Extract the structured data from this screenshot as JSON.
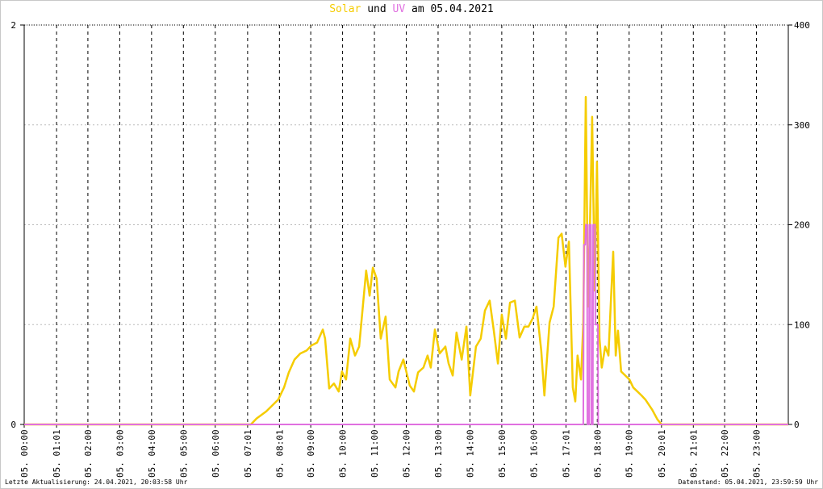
{
  "chart_data": {
    "type": "line",
    "title": [
      "und",
      "am 05.04.2021"
    ],
    "xlim": [
      0,
      24
    ],
    "xticks": [
      {
        "value": 0,
        "label": "05. 00:00"
      },
      {
        "value": 1.017,
        "label": "05. 01:01"
      },
      {
        "value": 2,
        "label": "05. 02:00"
      },
      {
        "value": 3,
        "label": "05. 03:00"
      },
      {
        "value": 4,
        "label": "05. 04:00"
      },
      {
        "value": 5,
        "label": "05. 05:00"
      },
      {
        "value": 6,
        "label": "05. 06:00"
      },
      {
        "value": 7.017,
        "label": "05. 07:01"
      },
      {
        "value": 8.017,
        "label": "05. 08:01"
      },
      {
        "value": 9,
        "label": "05. 09:00"
      },
      {
        "value": 10,
        "label": "05. 10:00"
      },
      {
        "value": 11,
        "label": "05. 11:00"
      },
      {
        "value": 12,
        "label": "05. 12:00"
      },
      {
        "value": 13,
        "label": "05. 13:00"
      },
      {
        "value": 14,
        "label": "05. 14:00"
      },
      {
        "value": 15,
        "label": "05. 15:00"
      },
      {
        "value": 16,
        "label": "05. 16:00"
      },
      {
        "value": 17.017,
        "label": "05. 17:01"
      },
      {
        "value": 18,
        "label": "05. 18:00"
      },
      {
        "value": 19,
        "label": "05. 19:00"
      },
      {
        "value": 20.017,
        "label": "05. 20:01"
      },
      {
        "value": 21.017,
        "label": "05. 21:01"
      },
      {
        "value": 22,
        "label": "05. 22:00"
      },
      {
        "value": 23,
        "label": "05. 23:00"
      }
    ],
    "ylim": [
      0,
      2
    ],
    "yticks": [
      0,
      2
    ],
    "y2lim": [
      0,
      400
    ],
    "y2ticks": [
      0,
      100,
      200,
      300,
      400
    ],
    "grid": true,
    "series": [
      {
        "name": "Solar",
        "color": "#f5cc00",
        "axis": "y2",
        "x": [
          0,
          7.12,
          7.3,
          7.6,
          7.98,
          8.16,
          8.31,
          8.49,
          8.67,
          8.87,
          9.02,
          9.2,
          9.38,
          9.45,
          9.58,
          9.73,
          9.88,
          9.98,
          10.11,
          10.24,
          10.39,
          10.52,
          10.74,
          10.85,
          10.95,
          11.07,
          11.2,
          11.35,
          11.48,
          11.66,
          11.76,
          11.91,
          12.11,
          12.24,
          12.37,
          12.54,
          12.67,
          12.77,
          12.9,
          13.05,
          13.23,
          13.33,
          13.46,
          13.58,
          13.74,
          13.89,
          14.01,
          14.19,
          14.34,
          14.47,
          14.62,
          14.75,
          14.88,
          15.0,
          15.13,
          15.26,
          15.41,
          15.56,
          15.71,
          15.84,
          15.97,
          16.09,
          16.24,
          16.34,
          16.5,
          16.63,
          16.78,
          16.88,
          17.0,
          17.11,
          17.23,
          17.31,
          17.38,
          17.49,
          17.56,
          17.64,
          17.71,
          17.76,
          17.84,
          17.92,
          17.99,
          18.07,
          18.14,
          18.25,
          18.35,
          18.42,
          18.5,
          18.58,
          18.65,
          18.75,
          18.88,
          19.01,
          19.13,
          19.26,
          19.39,
          19.51,
          19.72,
          19.89,
          20.02,
          24
        ],
        "values": [
          0,
          0,
          6,
          13,
          25,
          37,
          52,
          65,
          71,
          74,
          79,
          82,
          95,
          86,
          36,
          41,
          33,
          53,
          45,
          86,
          69,
          78,
          154,
          129,
          157,
          146,
          86,
          108,
          45,
          37,
          53,
          65,
          39,
          33,
          52,
          57,
          69,
          57,
          95,
          71,
          78,
          61,
          49,
          92,
          65,
          98,
          29,
          78,
          86,
          114,
          124,
          94,
          61,
          110,
          86,
          122,
          124,
          87,
          98,
          98,
          106,
          118,
          74,
          29,
          102,
          118,
          187,
          191,
          158,
          183,
          37,
          23,
          69,
          45,
          102,
          328,
          118,
          183,
          308,
          134,
          263,
          86,
          57,
          78,
          69,
          118,
          173,
          69,
          94,
          53,
          49,
          45,
          37,
          33,
          29,
          25,
          15,
          5,
          0,
          0
        ]
      },
      {
        "name": "UV",
        "color": "#e070e0",
        "axis": "y",
        "x": [
          0,
          17.56,
          17.58,
          17.62,
          17.64,
          17.68,
          17.69,
          17.74,
          17.75,
          17.8,
          17.81,
          17.86,
          17.87,
          17.93,
          17.94,
          18.02,
          18.03,
          24
        ],
        "values": [
          0,
          0,
          0.9,
          0.9,
          1,
          1,
          0,
          0,
          1,
          1,
          0,
          0,
          1,
          1,
          0.5,
          0.5,
          0,
          0
        ]
      }
    ],
    "footer_left": "Letzte Aktualisierung: 24.04.2021, 20:03:58 Uhr",
    "footer_right": "Datenstand: 05.04.2021, 23:59:59 Uhr"
  }
}
